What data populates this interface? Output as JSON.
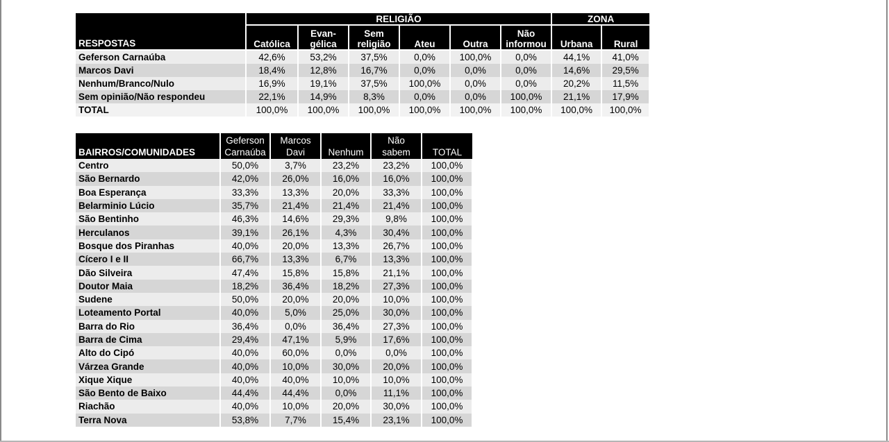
{
  "table1": {
    "group_religiao": "RELIGIÃO",
    "group_zona": "ZONA",
    "respostas_header": "RESPOSTAS",
    "columns": [
      [
        "Católica"
      ],
      [
        "Evan-",
        "gélica"
      ],
      [
        "Sem",
        "religião"
      ],
      [
        "Ateu"
      ],
      [
        "Outra"
      ],
      [
        "Não",
        "informou"
      ],
      [
        "Urbana"
      ],
      [
        "Rural"
      ]
    ],
    "rows": [
      {
        "label": "Geferson Carnaúba",
        "values": [
          "42,6%",
          "53,2%",
          "37,5%",
          "0,0%",
          "100,0%",
          "0,0%",
          "44,1%",
          "41,0%"
        ]
      },
      {
        "label": "Marcos Davi",
        "values": [
          "18,4%",
          "12,8%",
          "16,7%",
          "0,0%",
          "0,0%",
          "0,0%",
          "14,6%",
          "29,5%"
        ]
      },
      {
        "label": "Nenhum/Branco/Nulo",
        "values": [
          "16,9%",
          "19,1%",
          "37,5%",
          "100,0%",
          "0,0%",
          "0,0%",
          "20,2%",
          "11,5%"
        ]
      },
      {
        "label": "Sem opinião/Não respondeu",
        "values": [
          "22,1%",
          "14,9%",
          "8,3%",
          "0,0%",
          "0,0%",
          "100,0%",
          "21,1%",
          "17,9%"
        ]
      },
      {
        "label": "TOTAL",
        "values": [
          "100,0%",
          "100,0%",
          "100,0%",
          "100,0%",
          "100,0%",
          "100,0%",
          "100,0%",
          "100,0%"
        ]
      }
    ]
  },
  "table2": {
    "first_header": "BAIRROS/COMUNIDADES",
    "columns": [
      [
        "Geferson",
        "Carnaúba"
      ],
      [
        "Marcos",
        "Davi"
      ],
      [
        "Nenhum"
      ],
      [
        "Não",
        "sabem"
      ],
      [
        "TOTAL"
      ]
    ],
    "rows": [
      {
        "label": "Centro",
        "values": [
          "50,0%",
          "3,7%",
          "23,2%",
          "23,2%",
          "100,0%"
        ]
      },
      {
        "label": "São Bernardo",
        "values": [
          "42,0%",
          "26,0%",
          "16,0%",
          "16,0%",
          "100,0%"
        ]
      },
      {
        "label": "Boa Esperança",
        "values": [
          "33,3%",
          "13,3%",
          "20,0%",
          "33,3%",
          "100,0%"
        ]
      },
      {
        "label": "Belarminio Lúcio",
        "values": [
          "35,7%",
          "21,4%",
          "21,4%",
          "21,4%",
          "100,0%"
        ]
      },
      {
        "label": "São Bentinho",
        "values": [
          "46,3%",
          "14,6%",
          "29,3%",
          "9,8%",
          "100,0%"
        ]
      },
      {
        "label": "Herculanos",
        "values": [
          "39,1%",
          "26,1%",
          "4,3%",
          "30,4%",
          "100,0%"
        ]
      },
      {
        "label": "Bosque dos Piranhas",
        "values": [
          "40,0%",
          "20,0%",
          "13,3%",
          "26,7%",
          "100,0%"
        ]
      },
      {
        "label": "Cícero I e II",
        "values": [
          "66,7%",
          "13,3%",
          "6,7%",
          "13,3%",
          "100,0%"
        ]
      },
      {
        "label": "Dão Silveira",
        "values": [
          "47,4%",
          "15,8%",
          "15,8%",
          "21,1%",
          "100,0%"
        ]
      },
      {
        "label": "Doutor Maia",
        "values": [
          "18,2%",
          "36,4%",
          "18,2%",
          "27,3%",
          "100,0%"
        ]
      },
      {
        "label": "Sudene",
        "values": [
          "50,0%",
          "20,0%",
          "20,0%",
          "10,0%",
          "100,0%"
        ]
      },
      {
        "label": "Loteamento Portal",
        "values": [
          "40,0%",
          "5,0%",
          "25,0%",
          "30,0%",
          "100,0%"
        ]
      },
      {
        "label": "Barra do Rio",
        "values": [
          "36,4%",
          "0,0%",
          "36,4%",
          "27,3%",
          "100,0%"
        ]
      },
      {
        "label": "Barra de Cima",
        "values": [
          "29,4%",
          "47,1%",
          "5,9%",
          "17,6%",
          "100,0%"
        ]
      },
      {
        "label": "Alto do Cipó",
        "values": [
          "40,0%",
          "60,0%",
          "0,0%",
          "0,0%",
          "100,0%"
        ]
      },
      {
        "label": "Várzea Grande",
        "values": [
          "40,0%",
          "10,0%",
          "30,0%",
          "20,0%",
          "100,0%"
        ]
      },
      {
        "label": "Xique Xique",
        "values": [
          "40,0%",
          "40,0%",
          "10,0%",
          "10,0%",
          "100,0%"
        ]
      },
      {
        "label": "São Bento de Baixo",
        "values": [
          "44,4%",
          "44,4%",
          "0,0%",
          "11,1%",
          "100,0%"
        ]
      },
      {
        "label": "Riachão",
        "values": [
          "40,0%",
          "10,0%",
          "20,0%",
          "30,0%",
          "100,0%"
        ]
      },
      {
        "label": "Terra Nova",
        "values": [
          "53,8%",
          "7,7%",
          "15,4%",
          "23,1%",
          "100,0%"
        ]
      }
    ]
  }
}
